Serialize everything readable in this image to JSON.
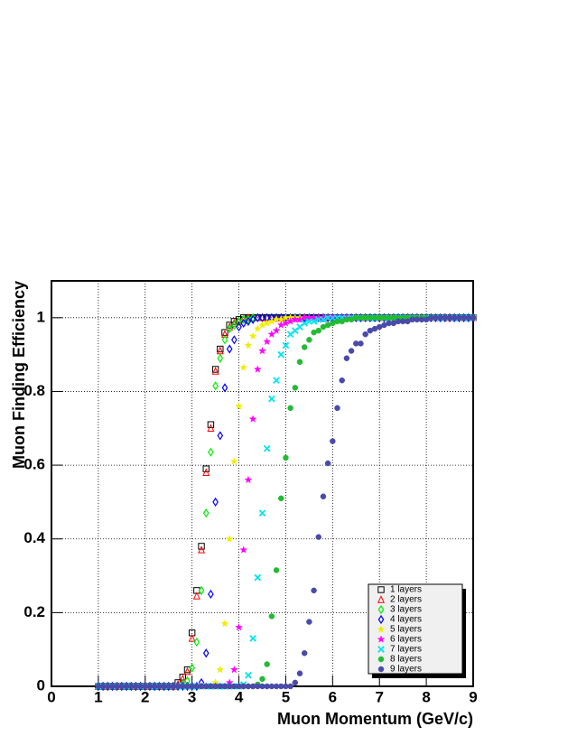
{
  "chart_data": {
    "type": "scatter",
    "x_label": "Muon Momentum (GeV/c)",
    "y_label": "Muon Finding Efficiency",
    "x": [
      1.0,
      1.1,
      1.2,
      1.3,
      1.4,
      1.5,
      1.6,
      1.7,
      1.8,
      1.9,
      2.0,
      2.1,
      2.2,
      2.3,
      2.4,
      2.5,
      2.6,
      2.7,
      2.8,
      2.9,
      3.0,
      3.1,
      3.2,
      3.3,
      3.4,
      3.5,
      3.6,
      3.7,
      3.8,
      3.9,
      4.0,
      4.1,
      4.2,
      4.3,
      4.4,
      4.5,
      4.6,
      4.7,
      4.8,
      4.9,
      5.0,
      5.1,
      5.2,
      5.3,
      5.4,
      5.5,
      5.6,
      5.7,
      5.8,
      5.9,
      6.0,
      6.1,
      6.2,
      6.3,
      6.4,
      6.5,
      6.6,
      6.7,
      6.8,
      6.9,
      7.0,
      7.1,
      7.2,
      7.3,
      7.4,
      7.5,
      7.6,
      7.7,
      7.8,
      7.9,
      8.0,
      8.1,
      8.2,
      8.3,
      8.4,
      8.5,
      8.6,
      8.7,
      8.8,
      8.9,
      9.0
    ],
    "series": [
      {
        "name": "1 layers",
        "color": "#000000",
        "marker": "open-square",
        "values": [
          0,
          0,
          0,
          0,
          0,
          0,
          0,
          0,
          0,
          0,
          0,
          0,
          0,
          0,
          0,
          0,
          0,
          0.01,
          0.025,
          0.045,
          0.145,
          0.26,
          0.38,
          0.59,
          0.71,
          0.86,
          0.915,
          0.96,
          0.98,
          0.99,
          0.995,
          1,
          1,
          1,
          1,
          1,
          1,
          1,
          1,
          1,
          1,
          1,
          1,
          1,
          1,
          1,
          1,
          1,
          1,
          1,
          1,
          1,
          1,
          1,
          1,
          1,
          1,
          1,
          1,
          1,
          1,
          1,
          1,
          1,
          1,
          1,
          1,
          1,
          1,
          1,
          1,
          1,
          1,
          1,
          1,
          1,
          1,
          1,
          1,
          1,
          1
        ]
      },
      {
        "name": "2 layers",
        "color": "#ff0000",
        "marker": "open-triangle",
        "values": [
          0,
          0,
          0,
          0,
          0,
          0,
          0,
          0,
          0,
          0,
          0,
          0,
          0,
          0,
          0,
          0,
          0,
          0.005,
          0.02,
          0.04,
          0.13,
          0.245,
          0.37,
          0.58,
          0.7,
          0.855,
          0.91,
          0.955,
          0.975,
          0.985,
          0.99,
          0.995,
          1,
          1,
          1,
          1,
          1,
          1,
          1,
          1,
          1,
          1,
          1,
          1,
          1,
          1,
          1,
          1,
          1,
          1,
          1,
          1,
          1,
          1,
          1,
          1,
          1,
          1,
          1,
          1,
          1,
          1,
          1,
          1,
          1,
          1,
          1,
          1,
          1,
          1,
          1,
          1,
          1,
          1,
          1,
          1,
          1,
          1,
          1,
          1,
          1
        ]
      },
      {
        "name": "3 layers",
        "color": "#00ee00",
        "marker": "open-diamond",
        "values": [
          0,
          0,
          0,
          0,
          0,
          0,
          0,
          0,
          0,
          0,
          0,
          0,
          0,
          0,
          0,
          0,
          0,
          0,
          0.005,
          0.015,
          0.05,
          0.12,
          0.26,
          0.47,
          0.635,
          0.815,
          0.89,
          0.94,
          0.97,
          0.98,
          0.99,
          0.995,
          0.995,
          1,
          1,
          1,
          1,
          1,
          1,
          1,
          1,
          1,
          1,
          1,
          1,
          1,
          1,
          1,
          1,
          1,
          1,
          1,
          1,
          1,
          1,
          1,
          1,
          1,
          1,
          1,
          1,
          1,
          1,
          1,
          1,
          1,
          1,
          1,
          1,
          1,
          1,
          1,
          1,
          1,
          1,
          1,
          1,
          1,
          1,
          1,
          1
        ]
      },
      {
        "name": "4 layers",
        "color": "#0000ff",
        "marker": "open-diamond",
        "values": [
          0,
          0,
          0,
          0,
          0,
          0,
          0,
          0,
          0,
          0,
          0,
          0,
          0,
          0,
          0,
          0,
          0,
          0,
          0,
          0,
          0,
          0,
          0.01,
          0.09,
          0.25,
          0.5,
          0.68,
          0.81,
          0.915,
          0.94,
          0.975,
          0.985,
          0.99,
          0.995,
          1,
          1,
          1,
          1,
          1,
          1,
          1,
          1,
          1,
          1,
          1,
          1,
          1,
          1,
          1,
          1,
          1,
          1,
          1,
          1,
          1,
          1,
          1,
          1,
          1,
          1,
          1,
          1,
          1,
          1,
          1,
          1,
          1,
          1,
          1,
          1,
          1,
          1,
          1,
          1,
          1,
          1,
          1,
          1,
          1,
          1,
          1
        ]
      },
      {
        "name": "5 layers",
        "color": "#eeee00",
        "marker": "star",
        "values": [
          0,
          0,
          0,
          0,
          0,
          0,
          0,
          0,
          0,
          0,
          0,
          0,
          0,
          0,
          0,
          0,
          0,
          0,
          0,
          0,
          0,
          0,
          0,
          0,
          0,
          0.01,
          0.045,
          0.17,
          0.4,
          0.61,
          0.76,
          0.865,
          0.925,
          0.95,
          0.97,
          0.98,
          0.985,
          0.99,
          0.995,
          0.995,
          1,
          1,
          1,
          1,
          1,
          1,
          1,
          1,
          1,
          1,
          1,
          1,
          1,
          1,
          1,
          1,
          1,
          1,
          1,
          1,
          1,
          1,
          1,
          1,
          1,
          1,
          1,
          1,
          1,
          1,
          1,
          1,
          1,
          1,
          1,
          1,
          1,
          1,
          1,
          1,
          1
        ]
      },
      {
        "name": "6 layers",
        "color": "#ff00ff",
        "marker": "star",
        "values": [
          0,
          0,
          0,
          0,
          0,
          0,
          0,
          0,
          0,
          0,
          0,
          0,
          0,
          0,
          0,
          0,
          0,
          0,
          0,
          0,
          0,
          0,
          0,
          0,
          0,
          0,
          0,
          0,
          0.01,
          0.045,
          0.16,
          0.37,
          0.56,
          0.725,
          0.86,
          0.91,
          0.935,
          0.955,
          0.965,
          0.98,
          0.985,
          0.99,
          0.995,
          0.995,
          1,
          1,
          1,
          1,
          1,
          1,
          1,
          1,
          1,
          1,
          1,
          1,
          1,
          1,
          1,
          1,
          1,
          1,
          1,
          1,
          1,
          1,
          1,
          1,
          1,
          1,
          1,
          1,
          1,
          1,
          1,
          1,
          1,
          1,
          1,
          1,
          1
        ]
      },
      {
        "name": "7 layers",
        "color": "#00e5ee",
        "marker": "cross",
        "values": [
          0,
          0,
          0,
          0,
          0,
          0,
          0,
          0,
          0,
          0,
          0,
          0,
          0,
          0,
          0,
          0,
          0,
          0,
          0,
          0,
          0,
          0,
          0,
          0,
          0,
          0,
          0,
          0,
          0,
          0,
          0,
          0.005,
          0.03,
          0.13,
          0.295,
          0.47,
          0.645,
          0.78,
          0.83,
          0.9,
          0.925,
          0.955,
          0.965,
          0.975,
          0.985,
          0.99,
          0.99,
          0.995,
          0.995,
          1,
          1,
          1,
          1,
          1,
          1,
          1,
          1,
          1,
          1,
          1,
          1,
          1,
          1,
          1,
          1,
          1,
          1,
          1,
          1,
          1,
          1,
          1,
          1,
          1,
          1,
          1,
          1,
          1,
          1,
          1,
          1
        ]
      },
      {
        "name": "8 layers",
        "color": "#22bb33",
        "marker": "circle",
        "values": [
          0,
          0,
          0,
          0,
          0,
          0,
          0,
          0,
          0,
          0,
          0,
          0,
          0,
          0,
          0,
          0,
          0,
          0,
          0,
          0,
          0,
          0,
          0,
          0,
          0,
          0,
          0,
          0,
          0,
          0,
          0,
          0,
          0,
          0,
          0.005,
          0.02,
          0.06,
          0.19,
          0.315,
          0.51,
          0.62,
          0.755,
          0.81,
          0.88,
          0.92,
          0.94,
          0.96,
          0.965,
          0.975,
          0.98,
          0.985,
          0.99,
          0.99,
          0.995,
          0.995,
          1,
          1,
          1,
          1,
          1,
          1,
          1,
          1,
          1,
          1,
          1,
          1,
          1,
          1,
          1,
          1,
          1,
          1,
          1,
          1,
          1,
          1,
          1,
          1,
          1,
          1
        ]
      },
      {
        "name": "9 layers",
        "color": "#4a4aaa",
        "marker": "circle",
        "values": [
          0,
          0,
          0,
          0,
          0,
          0,
          0,
          0,
          0,
          0,
          0,
          0,
          0,
          0,
          0,
          0,
          0,
          0,
          0,
          0,
          0,
          0,
          0,
          0,
          0,
          0,
          0,
          0,
          0,
          0,
          0,
          0,
          0,
          0,
          0,
          0,
          0,
          0,
          0,
          0,
          0,
          0,
          0.01,
          0.035,
          0.09,
          0.175,
          0.26,
          0.405,
          0.515,
          0.605,
          0.665,
          0.755,
          0.83,
          0.89,
          0.91,
          0.93,
          0.93,
          0.955,
          0.965,
          0.97,
          0.975,
          0.98,
          0.985,
          0.985,
          0.99,
          0.99,
          0.99,
          0.995,
          0.995,
          0.995,
          0.995,
          1,
          1,
          1,
          1,
          1,
          1,
          1,
          1,
          1,
          1
        ]
      }
    ],
    "xlim": [
      0,
      9
    ],
    "ylim": [
      0,
      1.1
    ],
    "xticks": [
      0,
      1,
      2,
      3,
      4,
      5,
      6,
      7,
      8,
      9
    ],
    "yticks": [
      0,
      0.2,
      0.4,
      0.6,
      0.8,
      1
    ],
    "grid": true,
    "legend": "bottom-right"
  }
}
